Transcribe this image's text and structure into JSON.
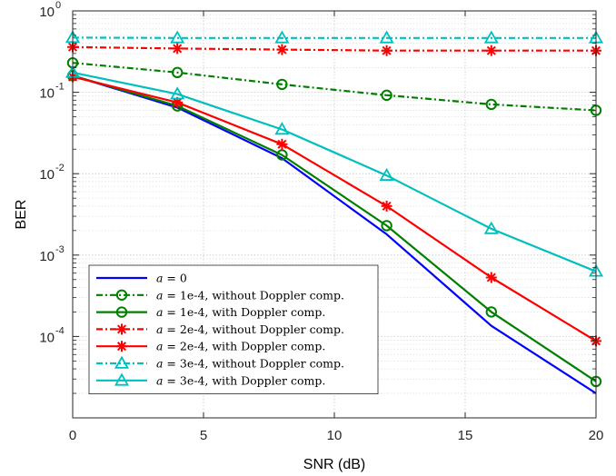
{
  "chart_data": {
    "type": "line",
    "title": "",
    "xlabel": "SNR (dB)",
    "ylabel": "BER",
    "x_scale": "linear",
    "y_scale": "log",
    "xlim": [
      0,
      20
    ],
    "ylim": [
      1e-05,
      1
    ],
    "grid": true,
    "minor_grid": true,
    "legend_position": "bottom-left",
    "x_ticks": [
      "0",
      "5",
      "10",
      "15",
      "20"
    ],
    "y_ticks": [
      {
        "base": "10",
        "exp": "0"
      },
      {
        "base": "10",
        "exp": "-1"
      },
      {
        "base": "10",
        "exp": "-2"
      },
      {
        "base": "10",
        "exp": "-3"
      },
      {
        "base": "10",
        "exp": "-4"
      }
    ],
    "x": [
      0,
      4,
      8,
      12,
      16,
      20
    ],
    "series": [
      {
        "name": "a = 0",
        "math": "a",
        "rest": " = 0",
        "color": "#0000ff",
        "dash": "solid",
        "marker": "none",
        "values": [
          0.16,
          0.065,
          0.0155,
          0.0018,
          0.000135,
          2e-05
        ]
      },
      {
        "name": "a = 1e-4, without Doppler comp.",
        "math": "a",
        "rest": " = 1e-4, without Doppler comp.",
        "color": "#007f00",
        "dash": "dashdot",
        "marker": "circle",
        "values": [
          0.23,
          0.175,
          0.125,
          0.092,
          0.071,
          0.06
        ]
      },
      {
        "name": "a = 1e-4, with Doppler comp.",
        "math": "a",
        "rest": " = 1e-4, with Doppler comp.",
        "color": "#007f00",
        "dash": "solid",
        "marker": "circle",
        "values": [
          0.16,
          0.068,
          0.017,
          0.0023,
          0.0002,
          2.8e-05
        ]
      },
      {
        "name": "a = 2e-4, without Doppler comp.",
        "math": "a",
        "rest": " = 2e-4, without Doppler comp.",
        "color": "#ff0000",
        "dash": "dashdot",
        "marker": "star",
        "values": [
          0.36,
          0.345,
          0.335,
          0.325,
          0.325,
          0.325
        ]
      },
      {
        "name": "a = 2e-4, with Doppler comp.",
        "math": "a",
        "rest": " = 2e-4, with Doppler comp.",
        "color": "#ff0000",
        "dash": "solid",
        "marker": "star",
        "values": [
          0.155,
          0.075,
          0.023,
          0.004,
          0.00053,
          8.8e-05
        ]
      },
      {
        "name": "a = 3e-4, without Doppler comp.",
        "math": "a",
        "rest": " = 3e-4, without Doppler comp.",
        "color": "#00bfbf",
        "dash": "dashdot",
        "marker": "triangle",
        "values": [
          0.47,
          0.465,
          0.465,
          0.465,
          0.465,
          0.465
        ]
      },
      {
        "name": "a = 3e-4, with Doppler comp.",
        "math": "a",
        "rest": " = 3e-4, with Doppler comp.",
        "color": "#00bfbf",
        "dash": "solid",
        "marker": "triangle",
        "values": [
          0.175,
          0.095,
          0.035,
          0.0095,
          0.0021,
          0.00063
        ]
      }
    ]
  }
}
